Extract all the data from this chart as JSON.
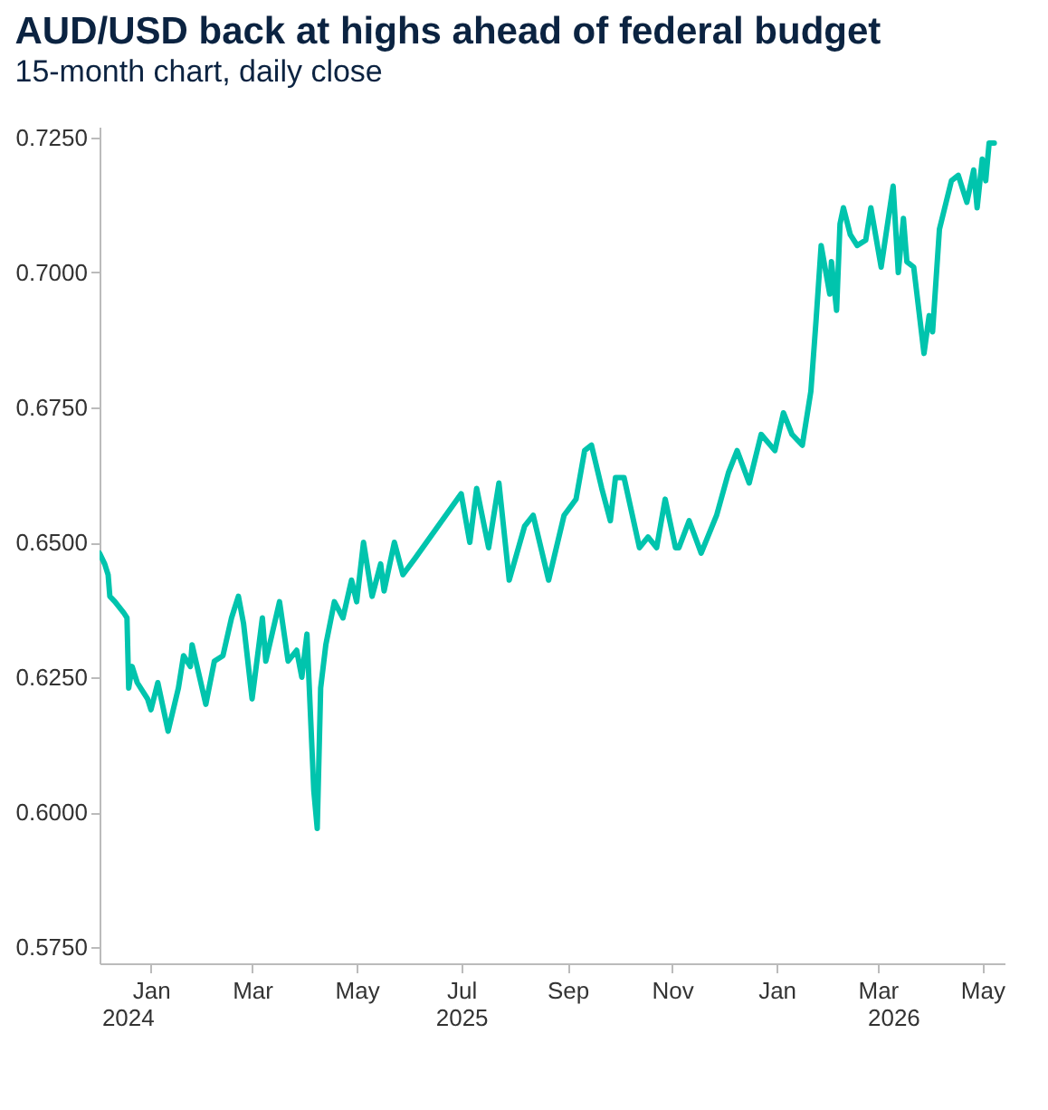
{
  "chart_data": {
    "type": "line",
    "title": "AUD/USD back at highs ahead of federal budget",
    "subtitle": "15-month chart, daily close",
    "x": [
      "2024-12-02",
      "2024-12-05",
      "2024-12-07",
      "2024-12-08",
      "2024-12-11",
      "2024-12-16",
      "2024-12-18",
      "2024-12-19",
      "2024-12-21",
      "2024-12-24",
      "2024-12-30",
      "2025-01-01",
      "2025-01-05",
      "2025-01-11",
      "2025-01-17",
      "2025-01-20",
      "2025-01-24",
      "2025-01-25",
      "2025-02-02",
      "2025-02-07",
      "2025-02-12",
      "2025-02-17",
      "2025-02-21",
      "2025-02-24",
      "2025-03-01",
      "2025-03-07",
      "2025-03-09",
      "2025-03-17",
      "2025-03-22",
      "2025-03-27",
      "2025-03-30",
      "2025-04-02",
      "2025-04-06",
      "2025-04-08",
      "2025-04-10",
      "2025-04-13",
      "2025-04-18",
      "2025-04-23",
      "2025-04-28",
      "2025-05-01",
      "2025-05-05",
      "2025-05-10",
      "2025-05-15",
      "2025-05-17",
      "2025-05-23",
      "2025-05-28",
      "2025-06-04",
      "2025-07-01",
      "2025-07-06",
      "2025-07-10",
      "2025-07-17",
      "2025-07-23",
      "2025-07-29",
      "2025-08-07",
      "2025-08-12",
      "2025-08-21",
      "2025-08-30",
      "2025-09-06",
      "2025-09-11",
      "2025-09-15",
      "2025-09-21",
      "2025-09-26",
      "2025-09-29",
      "2025-10-04",
      "2025-10-13",
      "2025-10-18",
      "2025-10-23",
      "2025-10-28",
      "2025-11-03",
      "2025-11-05",
      "2025-11-11",
      "2025-11-18",
      "2025-11-27",
      "2025-12-04",
      "2025-12-09",
      "2025-12-16",
      "2025-12-23",
      "2025-12-31",
      "2026-01-05",
      "2026-01-10",
      "2026-01-16",
      "2026-01-21",
      "2026-01-24",
      "2026-01-27",
      "2026-02-01",
      "2026-02-02",
      "2026-02-05",
      "2026-02-07",
      "2026-02-09",
      "2026-02-13",
      "2026-02-17",
      "2026-02-22",
      "2026-02-25",
      "2026-03-03",
      "2026-03-10",
      "2026-03-13",
      "2026-03-16",
      "2026-03-18",
      "2026-03-22",
      "2026-03-28",
      "2026-03-31",
      "2026-04-02",
      "2026-04-06",
      "2026-04-13",
      "2026-04-17",
      "2026-04-22",
      "2026-04-26",
      "2026-04-28",
      "2026-05-01",
      "2026-05-03",
      "2026-05-05",
      "2026-05-08"
    ],
    "series": [
      {
        "color": "#00c4ad",
        "values": [
          0.648,
          0.646,
          0.644,
          0.64,
          0.639,
          0.637,
          0.636,
          0.623,
          0.627,
          0.624,
          0.621,
          0.619,
          0.624,
          0.615,
          0.623,
          0.629,
          0.627,
          0.631,
          0.62,
          0.628,
          0.629,
          0.636,
          0.64,
          0.635,
          0.621,
          0.636,
          0.628,
          0.639,
          0.628,
          0.63,
          0.625,
          0.633,
          0.604,
          0.597,
          0.623,
          0.631,
          0.639,
          0.636,
          0.643,
          0.639,
          0.65,
          0.64,
          0.646,
          0.641,
          0.65,
          0.644,
          0.647,
          0.659,
          0.65,
          0.66,
          0.649,
          0.661,
          0.643,
          0.653,
          0.655,
          0.643,
          0.655,
          0.658,
          0.667,
          0.668,
          0.66,
          0.654,
          0.662,
          0.662,
          0.649,
          0.651,
          0.649,
          0.658,
          0.649,
          0.649,
          0.654,
          0.648,
          0.655,
          0.663,
          0.667,
          0.661,
          0.67,
          0.667,
          0.674,
          0.67,
          0.668,
          0.678,
          0.691,
          0.705,
          0.696,
          0.702,
          0.693,
          0.709,
          0.712,
          0.707,
          0.705,
          0.706,
          0.712,
          0.701,
          0.716,
          0.7,
          0.71,
          0.702,
          0.701,
          0.685,
          0.692,
          0.689,
          0.708,
          0.717,
          0.718,
          0.713,
          0.719,
          0.712,
          0.721,
          0.717,
          0.724,
          0.724
        ]
      }
    ],
    "xlim": [
      "2024-12-02",
      "2026-05-14"
    ],
    "xticks": [
      {
        "value": "2025-01-01",
        "label": "Jan"
      },
      {
        "value": "2025-03-01",
        "label": "Mar"
      },
      {
        "value": "2025-05-01",
        "label": "May"
      },
      {
        "value": "2025-07-01",
        "label": "Jul"
      },
      {
        "value": "2025-09-01",
        "label": "Sep"
      },
      {
        "value": "2025-11-01",
        "label": "Nov"
      },
      {
        "value": "2026-01-01",
        "label": "Jan"
      },
      {
        "value": "2026-03-01",
        "label": "Mar"
      },
      {
        "value": "2026-05-01",
        "label": "May"
      }
    ],
    "x2lim": [
      "2024-12-02",
      "2026-05-14"
    ],
    "x2ticks": [
      {
        "value": "2024-12-03",
        "label": "2024"
      },
      {
        "value": "2025-07-01",
        "label": "2025"
      },
      {
        "value": "2026-03-10",
        "label": "2026"
      }
    ],
    "ylim": [
      0.572,
      0.727
    ],
    "yticks": [
      {
        "value": 0.575,
        "label": "0.5750"
      },
      {
        "value": 0.6,
        "label": "0.6000"
      },
      {
        "value": 0.625,
        "label": "0.6250"
      },
      {
        "value": 0.65,
        "label": "0.6500"
      },
      {
        "value": 0.675,
        "label": "0.6750"
      },
      {
        "value": 0.7,
        "label": "0.7000"
      },
      {
        "value": 0.725,
        "label": "0.7250"
      }
    ],
    "grid": false,
    "line_style": "solid"
  }
}
